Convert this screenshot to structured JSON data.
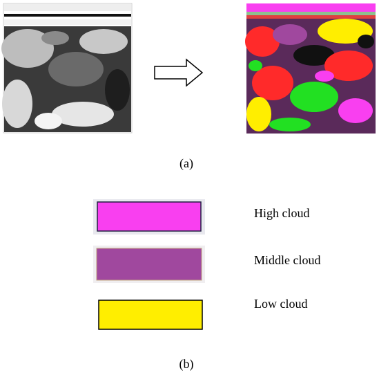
{
  "panel_a": {
    "label": "(a)"
  },
  "legend": {
    "items": [
      {
        "label": "High cloud",
        "color": "#f93ff0"
      },
      {
        "label": "Middle cloud",
        "color": "#a0489e"
      },
      {
        "label": "Low cloud",
        "color": "#ffee00"
      }
    ]
  },
  "panel_b": {
    "label": "(b)"
  }
}
